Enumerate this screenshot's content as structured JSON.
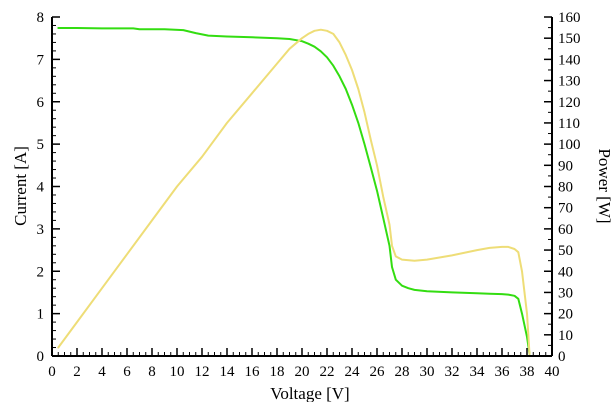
{
  "chart_data": {
    "type": "line",
    "xlabel": "Voltage [V]",
    "ylabel_left": "Current [A]",
    "ylabel_right": "Power [W]",
    "xlim": [
      0,
      40
    ],
    "ylim_left": [
      0,
      8
    ],
    "ylim_right": [
      0,
      160
    ],
    "x_ticks": [
      "0",
      "2",
      "4",
      "6",
      "8",
      "10",
      "12",
      "14",
      "16",
      "18",
      "20",
      "22",
      "24",
      "26",
      "28",
      "30",
      "32",
      "34",
      "36",
      "38",
      "40"
    ],
    "y_left_ticks": [
      "0",
      "1",
      "2",
      "3",
      "4",
      "5",
      "6",
      "7",
      "8"
    ],
    "y_right_ticks": [
      "0",
      "10",
      "20",
      "30",
      "40",
      "50",
      "60",
      "70",
      "80",
      "90",
      "100",
      "110",
      "120",
      "130",
      "140",
      "150",
      "160"
    ],
    "grid": false,
    "series": [
      {
        "axis": "left",
        "color": "#33dd11",
        "x": [
          0.5,
          2,
          4,
          6.5,
          7,
          9,
          10.5,
          11.5,
          12.5,
          14,
          16,
          18,
          19,
          20,
          20.5,
          21,
          21.5,
          22,
          22.5,
          23,
          23.5,
          24,
          24.5,
          25,
          25.5,
          26,
          26.5,
          27,
          27.2,
          27.5,
          28,
          28.5,
          29,
          30,
          32,
          34,
          35,
          36,
          36.5,
          37,
          37.3,
          37.6,
          38,
          38.2
        ],
        "y": [
          7.74,
          7.74,
          7.73,
          7.73,
          7.71,
          7.71,
          7.69,
          7.62,
          7.56,
          7.54,
          7.52,
          7.5,
          7.48,
          7.43,
          7.37,
          7.3,
          7.19,
          7.05,
          6.85,
          6.6,
          6.3,
          5.93,
          5.5,
          5.0,
          4.45,
          3.9,
          3.25,
          2.6,
          2.1,
          1.8,
          1.66,
          1.6,
          1.56,
          1.53,
          1.5,
          1.48,
          1.47,
          1.46,
          1.45,
          1.42,
          1.35,
          1.0,
          0.45,
          0.05
        ]
      },
      {
        "axis": "right",
        "color": "#eedd77",
        "x": [
          0.5,
          2,
          4,
          6,
          8,
          10,
          12,
          14,
          16,
          18,
          19,
          20,
          20.5,
          21,
          21.5,
          22,
          22.5,
          23,
          23.5,
          24,
          24.5,
          25,
          25.5,
          26,
          26.5,
          27,
          27.2,
          27.5,
          28,
          29,
          30,
          32,
          34,
          35,
          36,
          36.5,
          37,
          37.3,
          37.6,
          38,
          38.2
        ],
        "y": [
          4,
          16,
          32,
          48,
          64,
          80,
          94,
          110,
          124,
          138,
          145,
          150,
          152,
          153.5,
          154,
          153.5,
          152,
          148,
          142,
          135,
          126,
          115,
          102,
          90,
          75,
          62,
          52,
          47,
          45.5,
          45,
          45.5,
          47.5,
          50,
          51,
          51.5,
          51.5,
          50.5,
          49,
          40,
          20,
          1
        ]
      }
    ]
  }
}
